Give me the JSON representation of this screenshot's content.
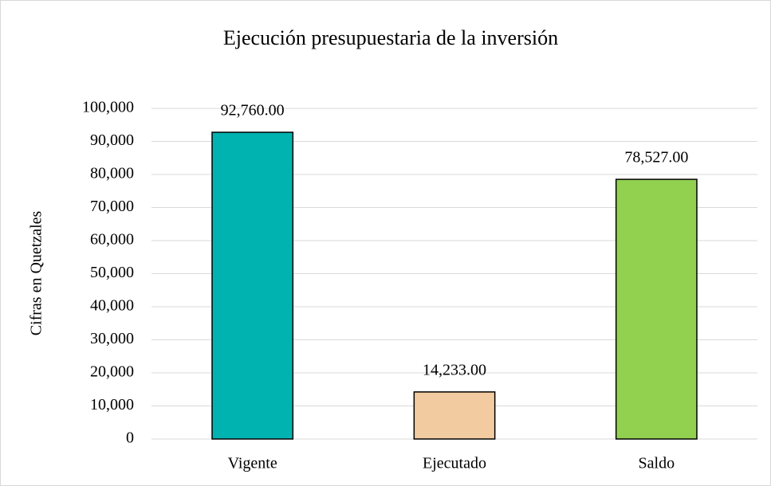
{
  "chart_data": {
    "type": "bar",
    "title": "Ejecución presupuestaria de la inversión",
    "y_label": "Cifras en Quetzales",
    "categories": [
      "Vigente",
      "Ejecutado",
      "Saldo"
    ],
    "values": [
      92760,
      14233,
      78527
    ],
    "value_labels": [
      "92,760.00",
      "14,233.00",
      "78,527.00"
    ],
    "colors": [
      "#00b3b0",
      "#f2cba0",
      "#92d050"
    ],
    "ylim": [
      0,
      100000
    ],
    "yticks": [
      0,
      {
        "value": 10000,
        "label": "10,000"
      },
      {
        "value": 20000,
        "label": "20,000"
      },
      {
        "value": 30000,
        "label": "30,000"
      },
      {
        "value": 40000,
        "label": "40,000"
      },
      {
        "value": 50000,
        "label": "50,000"
      },
      {
        "value": 60000,
        "label": "60,000"
      },
      {
        "value": 70000,
        "label": "70,000"
      },
      {
        "value": 80000,
        "label": "80,000"
      },
      {
        "value": 90000,
        "label": "90,000"
      },
      {
        "value": 100000,
        "label": "100,000"
      }
    ],
    "grid": true
  }
}
